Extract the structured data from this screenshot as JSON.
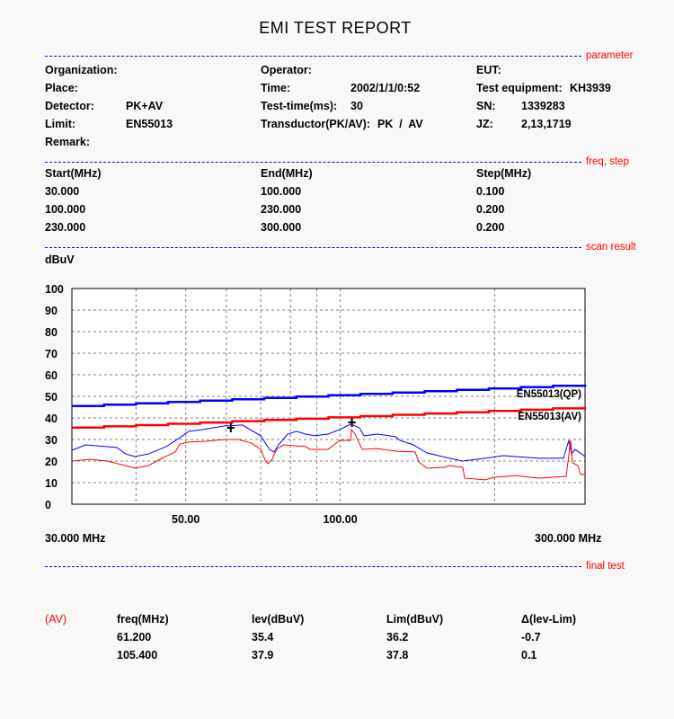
{
  "title": "EMI TEST REPORT",
  "sections": {
    "parameter": "parameter",
    "freq_step": "freq, step",
    "scan_result": "scan result",
    "final_test": "final test"
  },
  "parameters": {
    "organization_label": "Organization:",
    "organization": "",
    "place_label": "Place:",
    "place": "",
    "detector_label": "Detector:",
    "detector": "PK+AV",
    "limit_label": "Limit:",
    "limit": "EN55013",
    "remark_label": "Remark:",
    "remark": "",
    "operator_label": "Operator:",
    "operator": "",
    "time_label": "Time:",
    "time": "2002/1/1/0:52",
    "test_time_label": "Test-time(ms):",
    "test_time": "30",
    "transductor_label": "Transductor(PK/AV):",
    "transductor": "PK  /  AV",
    "eut_label": "EUT:",
    "eut": "",
    "test_equipment_label": "Test equipment:",
    "test_equipment": "KH3939",
    "sn_label": "SN:",
    "sn": "1339283",
    "jz_label": "JZ:",
    "jz": "2,13,1719"
  },
  "freq_step": {
    "headers": [
      "Start(MHz)",
      "End(MHz)",
      "Step(MHz)"
    ],
    "rows": [
      [
        "30.000",
        "100.000",
        "0.100"
      ],
      [
        "100.000",
        "230.000",
        "0.200"
      ],
      [
        "230.000",
        "300.000",
        "0.200"
      ]
    ]
  },
  "chart_data": {
    "type": "line",
    "ylabel": "dBuV",
    "ylim": [
      0,
      100
    ],
    "yticks": [
      "0",
      "10",
      "20",
      "30",
      "40",
      "50",
      "60",
      "70",
      "80",
      "90",
      "100"
    ],
    "xscale": "log",
    "xlim": [
      30,
      300
    ],
    "xtick_labels": [
      "50.00",
      "100.00"
    ],
    "x_start_label": "30.000 MHz",
    "x_end_label": "300.000 MHz",
    "grid": true,
    "colors": {
      "qp": "#0000ff",
      "av": "#ff0000",
      "marker": "#000000"
    },
    "series": [
      {
        "name": "EN55013(QP)",
        "color": "#0000ff",
        "limit_line": true,
        "x": [
          30,
          300
        ],
        "y": [
          45.5,
          55.5
        ]
      },
      {
        "name": "EN55013(AV)",
        "color": "#ff0000",
        "limit_line": true,
        "x": [
          30,
          300
        ],
        "y": [
          35.5,
          45.0
        ]
      },
      {
        "color": "#0000ff",
        "x": [
          30,
          31.9,
          36.7,
          38.2,
          39.8,
          42.3,
          45.8,
          48.7,
          50.7,
          53.9,
          59.6,
          64.5,
          70.0,
          72.8,
          74.3,
          75.8,
          79.0,
          82.2,
          85.6,
          89.1,
          94.7,
          99.8,
          104.8,
          109,
          111.3,
          118.2,
          128.2,
          130.7,
          138.9,
          147.5,
          163.2,
          173.3,
          191.8,
          207.9,
          244.2,
          272.3,
          279,
          282.4,
          287,
          300
        ],
        "y": [
          25,
          27.5,
          26.3,
          23.3,
          22.1,
          23.3,
          26.7,
          30.8,
          33.8,
          34.6,
          36.3,
          36.7,
          31.7,
          25.4,
          24.2,
          27.5,
          32.5,
          33.8,
          32.5,
          31.7,
          32.5,
          34.6,
          37.1,
          35.4,
          31.7,
          32.5,
          31.3,
          29.6,
          27.5,
          23.8,
          21.3,
          20,
          21.3,
          22.5,
          21.3,
          21.3,
          29.6,
          23.3,
          25.4,
          22.1
        ]
      },
      {
        "color": "#ff0000",
        "x": [
          30,
          32.5,
          35.2,
          39.8,
          42.3,
          44.9,
          47.7,
          48.7,
          50.7,
          54.9,
          59.6,
          63.3,
          67.2,
          70.0,
          71.4,
          72.3,
          73.5,
          75.2,
          77.4,
          85.6,
          87.4,
          94.7,
          99.8,
          104.8,
          105.2,
          106.9,
          110.4,
          118.2,
          128.2,
          140,
          142.3,
          147.5,
          160,
          163.2,
          173.3,
          174.8,
          191.8,
          199.7,
          220.8,
          234.6,
          244.2,
          275.6,
          281.3,
          283.6,
          290.5,
          294,
          300
        ],
        "y": [
          20,
          20.8,
          20,
          16.7,
          17.9,
          21.3,
          24.2,
          27.9,
          28.8,
          29.2,
          30,
          30,
          28.3,
          25.4,
          20.4,
          18.8,
          20.4,
          25.4,
          27.5,
          26.7,
          25.4,
          25.4,
          29.6,
          29.6,
          34.6,
          32.5,
          25.4,
          25.8,
          24.6,
          24.2,
          19.6,
          16.7,
          17.1,
          17.9,
          17.1,
          12.1,
          11.3,
          12.5,
          13.3,
          12.5,
          12.1,
          12.9,
          29.6,
          19.2,
          17.9,
          13.8,
          13.8
        ]
      }
    ],
    "markers": [
      {
        "x": 61.2,
        "y": 35.4
      },
      {
        "x": 105.4,
        "y": 37.9
      }
    ]
  },
  "final_test": {
    "detector": "(AV)",
    "headers": [
      "freq(MHz)",
      "lev(dBuV)",
      "Lim(dBuV)",
      "Δ(lev-Lim)"
    ],
    "rows": [
      [
        "61.200",
        "35.4",
        "36.2",
        "-0.7"
      ],
      [
        "105.400",
        "37.9",
        "37.8",
        "0.1"
      ]
    ]
  }
}
